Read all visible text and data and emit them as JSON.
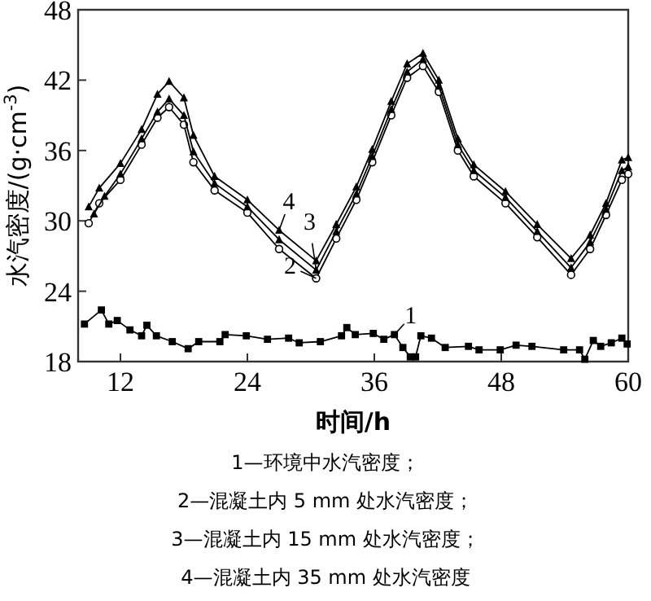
{
  "chart_data": {
    "type": "line",
    "xlabel": "时间/h",
    "ylabel": "水汽密度/(g·cm$^{-3}$)",
    "xlim": [
      8,
      60
    ],
    "ylim": [
      18,
      48
    ],
    "xticks": [
      12,
      24,
      36,
      48,
      60
    ],
    "yticks": [
      18,
      24,
      30,
      36,
      42,
      48
    ],
    "grid": false,
    "legend": "center",
    "line_style": "solid",
    "series": [
      {
        "name": "1",
        "color": "#000000",
        "marker": "square",
        "x": [
          8.6,
          10.2,
          10.9,
          11.7,
          12.9,
          14.0,
          14.5,
          15.4,
          16.9,
          18.4,
          19.4,
          21.4,
          21.9,
          23.9,
          25.9,
          27.9,
          28.9,
          30.9,
          32.9,
          33.4,
          34.2,
          35.9,
          36.9,
          37.9,
          38.7,
          39.4,
          39.9,
          40.4,
          41.4,
          42.7,
          44.9,
          45.9,
          47.9,
          49.4,
          50.9,
          53.9,
          55.4,
          55.9,
          56.7,
          57.4,
          58.4,
          59.4,
          59.9
        ],
        "values": [
          21.2,
          22.4,
          21.2,
          21.5,
          20.7,
          20.2,
          21.1,
          20.2,
          19.7,
          19.1,
          19.7,
          19.7,
          20.3,
          20.2,
          19.9,
          20.0,
          19.6,
          19.7,
          20.2,
          20.9,
          20.3,
          20.4,
          19.9,
          20.3,
          19.2,
          18.4,
          18.4,
          20.2,
          20.0,
          19.2,
          19.3,
          19.0,
          19.0,
          19.4,
          19.3,
          19.0,
          19.0,
          18.2,
          19.8,
          19.3,
          19.6,
          20.0,
          19.5
        ]
      },
      {
        "name": "2",
        "color": "#000000",
        "marker": "circle",
        "x": [
          9,
          10,
          12,
          14,
          15.5,
          16.6,
          18,
          18.9,
          20.9,
          24,
          27,
          30.5,
          32.4,
          34.3,
          35.8,
          37.6,
          39.1,
          40.6,
          42.1,
          43.9,
          45.4,
          48.4,
          51.4,
          54.6,
          56.4,
          57.9,
          59.4,
          60
        ],
        "values": [
          29.8,
          31.5,
          33.5,
          36.5,
          38.8,
          39.7,
          38.2,
          35.0,
          32.6,
          30.7,
          27.6,
          25.1,
          28.5,
          31.8,
          35.0,
          39.0,
          42.2,
          43.2,
          41.0,
          36.0,
          33.8,
          31.5,
          28.6,
          25.4,
          27.6,
          30.5,
          33.5,
          34.0
        ]
      },
      {
        "name": "3",
        "color": "#000000",
        "marker": "triangle",
        "x": [
          9.5,
          10.5,
          12,
          14,
          15.5,
          16.6,
          18,
          18.9,
          20.9,
          24,
          27,
          30.5,
          32.4,
          34.3,
          35.8,
          37.6,
          39.1,
          40.6,
          42.1,
          43.9,
          45.4,
          48.4,
          51.4,
          54.6,
          56.4,
          57.9,
          59.4,
          60
        ],
        "values": [
          30.6,
          32.1,
          34.0,
          37.0,
          39.3,
          40.4,
          39.0,
          35.9,
          33.2,
          31.2,
          28.4,
          25.8,
          29.1,
          32.3,
          35.5,
          39.5,
          42.7,
          43.8,
          41.5,
          36.5,
          34.3,
          32.0,
          29.1,
          26.0,
          28.2,
          31.0,
          34.3,
          34.6
        ]
      },
      {
        "name": "4",
        "color": "#000000",
        "marker": "triangle",
        "x": [
          9,
          10,
          12,
          14,
          15.5,
          16.6,
          18,
          18.9,
          20.9,
          24,
          27,
          30.5,
          32.4,
          34.3,
          35.8,
          37.6,
          39.1,
          40.6,
          42.1,
          43.9,
          45.4,
          48.4,
          51.4,
          54.6,
          56.4,
          57.9,
          59.4,
          60
        ],
        "values": [
          31.2,
          32.8,
          34.9,
          37.8,
          40.8,
          41.9,
          40.5,
          37.3,
          33.8,
          31.8,
          29.2,
          26.6,
          29.7,
          32.9,
          36.1,
          40.2,
          43.4,
          44.3,
          42.0,
          37.0,
          34.8,
          32.5,
          29.7,
          26.8,
          28.8,
          31.5,
          35.2,
          35.4
        ]
      }
    ],
    "annotations": [
      "1—环境中水汽密度；",
      "2—混凝土内 5 mm 处水汽密度；",
      "3—混凝土内 15 mm 处水汽密度；",
      "4—混凝土内 35 mm 处水汽密度"
    ]
  }
}
